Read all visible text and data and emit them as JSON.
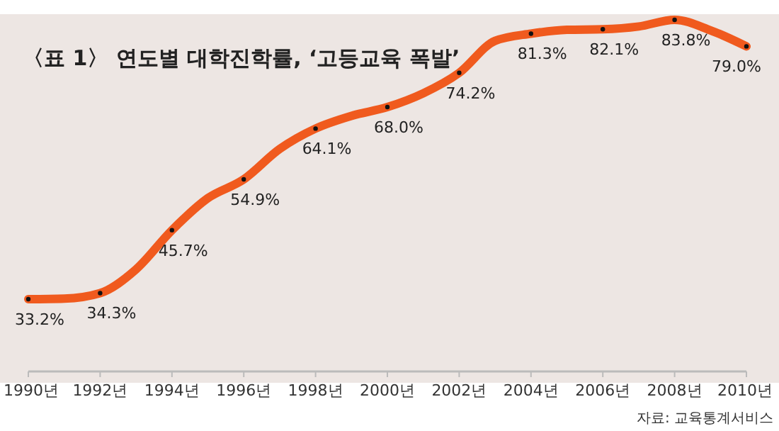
{
  "chart_data": {
    "type": "line",
    "title": "〈표 1〉 연도별 대학진학률, ‘고등교육 폭발’",
    "x": [
      1990,
      1991,
      1992,
      1993,
      1994,
      1995,
      1996,
      1997,
      1998,
      1999,
      2000,
      2001,
      2002,
      2003,
      2004,
      2005,
      2006,
      2007,
      2008,
      2009,
      2010
    ],
    "xlim": [
      1990,
      2010
    ],
    "xticks": [
      {
        "value": 1990,
        "label": "1990년"
      },
      {
        "value": 1992,
        "label": "1992년"
      },
      {
        "value": 1994,
        "label": "1994년"
      },
      {
        "value": 1996,
        "label": "1996년"
      },
      {
        "value": 1998,
        "label": "1998년"
      },
      {
        "value": 2000,
        "label": "2000년"
      },
      {
        "value": 2002,
        "label": "2002년"
      },
      {
        "value": 2004,
        "label": "2004년"
      },
      {
        "value": 2006,
        "label": "2006년"
      },
      {
        "value": 2008,
        "label": "2008년"
      },
      {
        "value": 2010,
        "label": "2010년"
      }
    ],
    "series": [
      {
        "color": "#f05a1e",
        "values": [
          33.2,
          33.3,
          34.3,
          38.6,
          45.7,
          51.5,
          54.9,
          60.4,
          64.1,
          66.4,
          68.0,
          70.5,
          74.2,
          80.0,
          81.3,
          82.0,
          82.1,
          82.6,
          83.8,
          81.9,
          79.0
        ],
        "value_labels": [
          "33.2%",
          null,
          "34.3%",
          null,
          "45.7%",
          null,
          "54.9%",
          null,
          "64.1%",
          null,
          "68.0%",
          null,
          "74.2%",
          null,
          "81.3%",
          null,
          "82.1%",
          null,
          "83.8%",
          null,
          "79.0%"
        ]
      }
    ],
    "annotations": [
      "자료: 교육통계서비스"
    ],
    "tick_labels": "x",
    "grid": false,
    "line_style": "solid",
    "marker": "circle"
  }
}
